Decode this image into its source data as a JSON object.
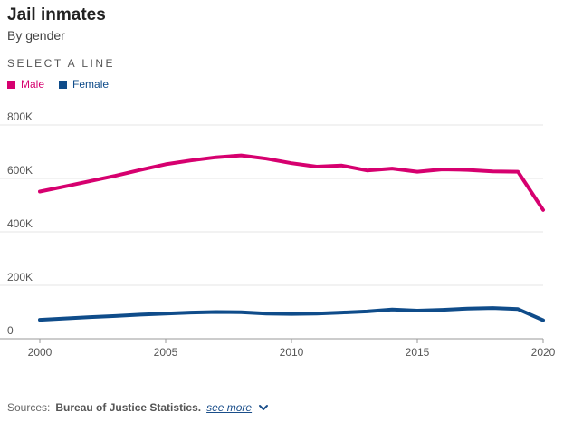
{
  "header": {
    "title": "Jail inmates",
    "subtitle": "By gender",
    "select_label": "SELECT A LINE"
  },
  "colors": {
    "male": "#d6006f",
    "female": "#0f4c8a",
    "grid": "#e5e5e5",
    "axis_text": "#555555"
  },
  "chart_data": {
    "type": "line",
    "x": [
      2000,
      2001,
      2002,
      2003,
      2004,
      2005,
      2006,
      2007,
      2008,
      2009,
      2010,
      2011,
      2012,
      2013,
      2014,
      2015,
      2016,
      2017,
      2018,
      2019,
      2020
    ],
    "series": [
      {
        "name": "Male",
        "values": [
          551000,
          570000,
          590000,
          610000,
          632000,
          653000,
          667000,
          679000,
          686000,
          674000,
          657000,
          644000,
          648000,
          630000,
          637000,
          625000,
          634000,
          632000,
          626000,
          625000,
          482000
        ]
      },
      {
        "name": "Female",
        "values": [
          71000,
          76000,
          81000,
          85000,
          90000,
          94000,
          98000,
          100000,
          99000,
          94000,
          93000,
          94000,
          98000,
          102000,
          109000,
          105000,
          108000,
          113000,
          115000,
          111000,
          69000
        ]
      }
    ],
    "x_ticks": [
      2000,
      2005,
      2010,
      2015,
      2020
    ],
    "x_tick_labels": [
      "2000",
      "2005",
      "2010",
      "2015",
      "2020"
    ],
    "y_ticks": [
      0,
      200000,
      400000,
      600000,
      800000
    ],
    "y_tick_labels": [
      "0",
      "200K",
      "400K",
      "600K",
      "800K"
    ],
    "xlim": [
      2000,
      2020
    ],
    "ylim": [
      0,
      800000
    ],
    "grid": true,
    "legend_placement": "top-left"
  },
  "sources": {
    "label": "Sources:",
    "name": "Bureau of Justice Statistics.",
    "link": "see more"
  }
}
